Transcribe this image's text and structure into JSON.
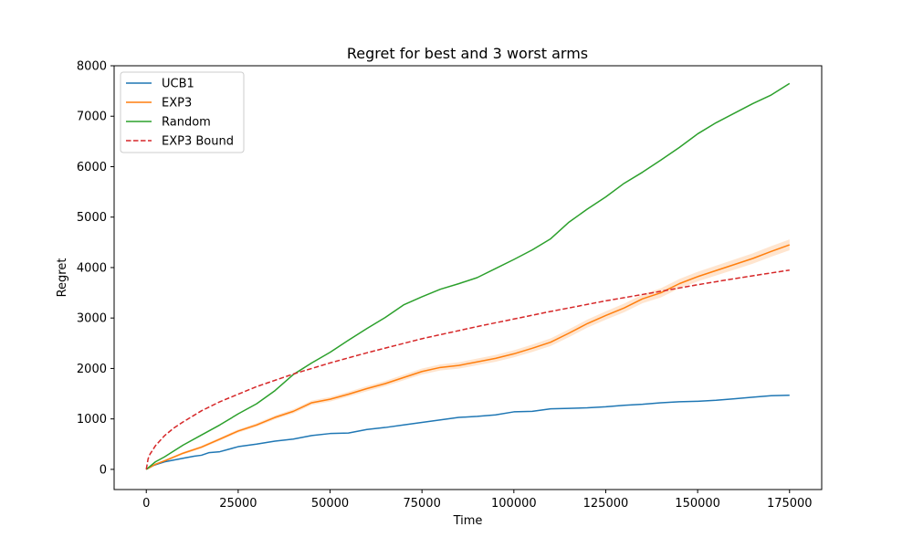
{
  "chart_data": {
    "type": "line",
    "title": "Regret for best and 3 worst arms",
    "xlabel": "Time",
    "ylabel": "Regret",
    "xlim": [
      -8750,
      183750
    ],
    "ylim": [
      -400,
      8000
    ],
    "xticks": [
      0,
      25000,
      50000,
      75000,
      100000,
      125000,
      150000,
      175000
    ],
    "xtick_labels": [
      "0",
      "25000",
      "50000",
      "75000",
      "100000",
      "125000",
      "150000",
      "175000"
    ],
    "yticks": [
      0,
      1000,
      2000,
      3000,
      4000,
      5000,
      6000,
      7000,
      8000
    ],
    "ytick_labels": [
      "0",
      "1000",
      "2000",
      "3000",
      "4000",
      "5000",
      "6000",
      "7000",
      "8000"
    ],
    "grid": false,
    "legend_position": "top-left",
    "series": [
      {
        "name": "UCB1",
        "color": "#1f77b4",
        "style": "solid",
        "x": [
          0,
          2000,
          5000,
          10000,
          13000,
          15000,
          17000,
          20000,
          22000,
          25000,
          30000,
          35000,
          40000,
          45000,
          50000,
          55000,
          60000,
          65000,
          70000,
          75000,
          80000,
          85000,
          90000,
          95000,
          100000,
          105000,
          110000,
          115000,
          120000,
          125000,
          130000,
          135000,
          140000,
          145000,
          150000,
          155000,
          160000,
          165000,
          170000,
          175000
        ],
        "y": [
          0,
          80,
          150,
          220,
          260,
          280,
          330,
          350,
          390,
          450,
          500,
          560,
          600,
          670,
          710,
          720,
          790,
          830,
          880,
          930,
          980,
          1030,
          1050,
          1080,
          1140,
          1150,
          1200,
          1210,
          1220,
          1240,
          1270,
          1290,
          1320,
          1340,
          1350,
          1370,
          1400,
          1430,
          1460,
          1470
        ]
      },
      {
        "name": "EXP3",
        "color": "#ff7f0e",
        "style": "solid",
        "band_width": 90,
        "x": [
          0,
          2500,
          5000,
          10000,
          15000,
          20000,
          25000,
          30000,
          35000,
          40000,
          45000,
          50000,
          55000,
          60000,
          65000,
          70000,
          75000,
          80000,
          85000,
          90000,
          95000,
          100000,
          105000,
          110000,
          115000,
          120000,
          125000,
          130000,
          135000,
          140000,
          145000,
          150000,
          155000,
          160000,
          165000,
          170000,
          175000
        ],
        "y": [
          0,
          100,
          170,
          320,
          440,
          600,
          760,
          880,
          1030,
          1150,
          1320,
          1390,
          1490,
          1600,
          1700,
          1820,
          1940,
          2020,
          2060,
          2130,
          2200,
          2290,
          2400,
          2520,
          2700,
          2890,
          3050,
          3200,
          3380,
          3500,
          3680,
          3820,
          3940,
          4060,
          4180,
          4320,
          4450
        ]
      },
      {
        "name": "Random",
        "color": "#2ca02c",
        "style": "solid",
        "x": [
          0,
          2500,
          5000,
          10000,
          15000,
          20000,
          25000,
          30000,
          35000,
          40000,
          45000,
          50000,
          55000,
          60000,
          65000,
          70000,
          75000,
          80000,
          85000,
          90000,
          95000,
          100000,
          105000,
          110000,
          115000,
          120000,
          125000,
          130000,
          135000,
          140000,
          145000,
          150000,
          155000,
          160000,
          165000,
          170000,
          175000
        ],
        "y": [
          0,
          150,
          250,
          480,
          680,
          880,
          1100,
          1300,
          1560,
          1880,
          2110,
          2320,
          2560,
          2790,
          3010,
          3260,
          3420,
          3570,
          3680,
          3800,
          3980,
          4160,
          4350,
          4570,
          4900,
          5160,
          5400,
          5670,
          5890,
          6130,
          6380,
          6650,
          6870,
          7060,
          7250,
          7420,
          7650
        ]
      },
      {
        "name": "EXP3 Bound",
        "color": "#d62728",
        "style": "dashed",
        "x": [
          0,
          500,
          1000,
          2500,
          5000,
          7500,
          10000,
          15000,
          20000,
          25000,
          30000,
          40000,
          50000,
          60000,
          75000,
          90000,
          100000,
          110000,
          125000,
          140000,
          150000,
          160000,
          175000
        ],
        "y": [
          0,
          210,
          300,
          470,
          670,
          820,
          940,
          1160,
          1340,
          1490,
          1640,
          1890,
          2110,
          2310,
          2590,
          2830,
          2980,
          3130,
          3340,
          3530,
          3660,
          3780,
          3950
        ]
      }
    ]
  }
}
